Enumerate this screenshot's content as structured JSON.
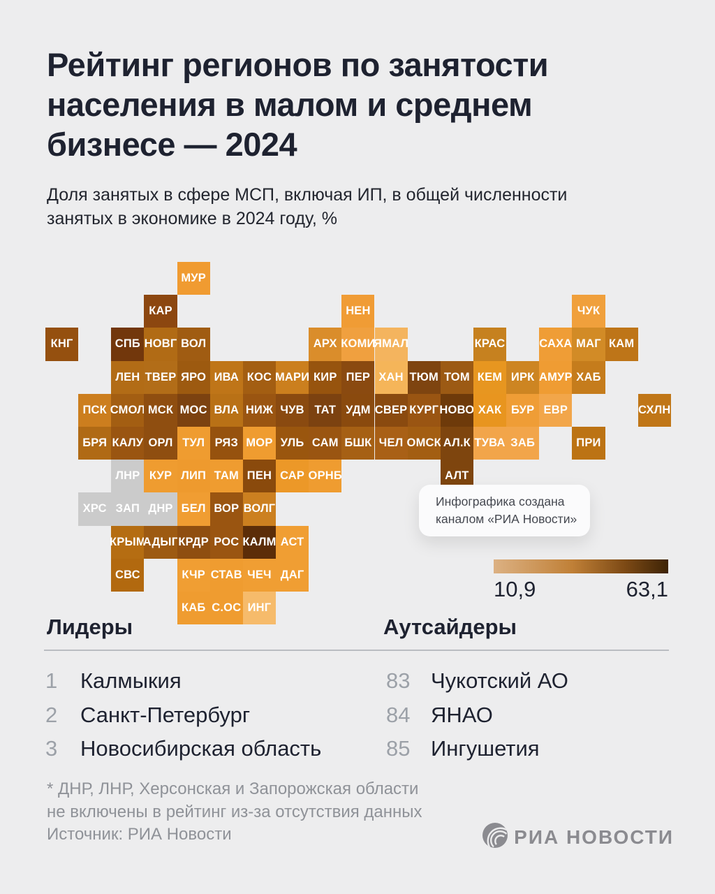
{
  "header": {
    "title_line1": "Рейтинг регионов по занятости",
    "title_line2": "населения в малом и среднем",
    "title_line3": "бизнесе — 2024",
    "subtitle_line1": "Доля занятых в сфере МСП, включая ИП, в общей численности",
    "subtitle_line2": "занятых в экономике в 2024 году, %"
  },
  "info_card": {
    "line1": "Инфографика создана",
    "line2": "каналом «РИА Новости»"
  },
  "legend": {
    "min_label": "10,9",
    "max_label": "63,1"
  },
  "leaders": {
    "heading": "Лидеры",
    "items": [
      {
        "rank": "1",
        "name": "Калмыкия"
      },
      {
        "rank": "2",
        "name": "Санкт-Петербург"
      },
      {
        "rank": "3",
        "name": "Новосибирская область"
      }
    ]
  },
  "outsiders": {
    "heading": "Аутсайдеры",
    "items": [
      {
        "rank": "83",
        "name": "Чукотский АО"
      },
      {
        "rank": "84",
        "name": "ЯНАО"
      },
      {
        "rank": "85",
        "name": "Ингушетия"
      }
    ]
  },
  "footnote_line1": "* ДНР, ЛНР, Херсонская и Запорожская области",
  "footnote_line2": "не включены в рейтинг из-за отсутствия данных",
  "source": "Источник: РИА Новости",
  "logo": {
    "text": "РИА НОВОСТИ"
  },
  "chart_data": {
    "type": "heatmap",
    "title": "Рейтинг регионов по занятости населения в малом и среднем бизнесе — 2024",
    "value_label": "Доля занятых в сфере МСП, включая ИП, в общей численности занятых в экономике в 2024 году, %",
    "scale": {
      "min": 10.9,
      "max": 63.1,
      "gradient": [
        "#DCB183",
        "#C08037",
        "#7D4A15",
        "#3D2306"
      ]
    },
    "excluded_color": "#CBCBCB",
    "tiles": [
      {
        "code": "МУР",
        "row": 0,
        "col": 4,
        "color": "#F09B31"
      },
      {
        "code": "КАР",
        "row": 1,
        "col": 3,
        "color": "#8C4710"
      },
      {
        "code": "НЕН",
        "row": 1,
        "col": 9,
        "color": "#F09C35"
      },
      {
        "code": "ЧУК",
        "row": 1,
        "col": 16,
        "color": "#F0A03C"
      },
      {
        "code": "КНГ",
        "row": 2,
        "col": 0,
        "color": "#95500F"
      },
      {
        "code": "СПБ",
        "row": 2,
        "col": 2,
        "color": "#72370C"
      },
      {
        "code": "НОВГ",
        "row": 2,
        "col": 3,
        "color": "#B16B15"
      },
      {
        "code": "ВОЛ",
        "row": 2,
        "col": 4,
        "color": "#A05C12"
      },
      {
        "code": "АРХ",
        "row": 2,
        "col": 8,
        "color": "#DA8D2B"
      },
      {
        "code": "КОМИ",
        "row": 2,
        "col": 9,
        "color": "#F0A03F"
      },
      {
        "code": "ЯМАЛ",
        "row": 2,
        "col": 10,
        "color": "#F4B45E"
      },
      {
        "code": "КРАС",
        "row": 2,
        "col": 13,
        "color": "#C6811F"
      },
      {
        "code": "САХА",
        "row": 2,
        "col": 15,
        "color": "#EF9D36"
      },
      {
        "code": "МАГ",
        "row": 2,
        "col": 16,
        "color": "#D28B26"
      },
      {
        "code": "КАМ",
        "row": 2,
        "col": 17,
        "color": "#BE7518"
      },
      {
        "code": "ЛЕН",
        "row": 3,
        "col": 2,
        "color": "#B26C16"
      },
      {
        "code": "ТВЕР",
        "row": 3,
        "col": 3,
        "color": "#B26D18"
      },
      {
        "code": "ЯРО",
        "row": 3,
        "col": 4,
        "color": "#9D5A10"
      },
      {
        "code": "ИВА",
        "row": 3,
        "col": 5,
        "color": "#BF7518"
      },
      {
        "code": "КОС",
        "row": 3,
        "col": 6,
        "color": "#A35E12"
      },
      {
        "code": "МАРИ",
        "row": 3,
        "col": 7,
        "color": "#CB7F1E"
      },
      {
        "code": "КИР",
        "row": 3,
        "col": 8,
        "color": "#97540E"
      },
      {
        "code": "ПЕР",
        "row": 3,
        "col": 9,
        "color": "#8A4A10"
      },
      {
        "code": "ХАН",
        "row": 3,
        "col": 10,
        "color": "#F5B559"
      },
      {
        "code": "ТЮМ",
        "row": 3,
        "col": 11,
        "color": "#7E4410"
      },
      {
        "code": "ТОМ",
        "row": 3,
        "col": 12,
        "color": "#9C5A14"
      },
      {
        "code": "КЕМ",
        "row": 3,
        "col": 13,
        "color": "#E79620"
      },
      {
        "code": "ИРК",
        "row": 3,
        "col": 14,
        "color": "#CD8522"
      },
      {
        "code": "АМУР",
        "row": 3,
        "col": 15,
        "color": "#EF9C33"
      },
      {
        "code": "ХАБ",
        "row": 3,
        "col": 16,
        "color": "#C57C1C"
      },
      {
        "code": "ПСК",
        "row": 4,
        "col": 1,
        "color": "#CC7E1E"
      },
      {
        "code": "СМОЛ",
        "row": 4,
        "col": 2,
        "color": "#A35E12"
      },
      {
        "code": "МСК",
        "row": 4,
        "col": 3,
        "color": "#8F4E10"
      },
      {
        "code": "МОС",
        "row": 4,
        "col": 4,
        "color": "#7C4210"
      },
      {
        "code": "ВЛА",
        "row": 4,
        "col": 5,
        "color": "#B97116"
      },
      {
        "code": "НИЖ",
        "row": 4,
        "col": 6,
        "color": "#9A5511"
      },
      {
        "code": "ЧУВ",
        "row": 4,
        "col": 7,
        "color": "#8A4A10"
      },
      {
        "code": "ТАТ",
        "row": 4,
        "col": 8,
        "color": "#7C4210"
      },
      {
        "code": "УДМ",
        "row": 4,
        "col": 9,
        "color": "#8A4A0E"
      },
      {
        "code": "СВЕР",
        "row": 4,
        "col": 10,
        "color": "#8A4A0F"
      },
      {
        "code": "КУРГ",
        "row": 4,
        "col": 11,
        "color": "#9A5512"
      },
      {
        "code": "НОВО",
        "row": 4,
        "col": 12,
        "color": "#6E3A0A"
      },
      {
        "code": "ХАК",
        "row": 4,
        "col": 13,
        "color": "#E8951F"
      },
      {
        "code": "БУР",
        "row": 4,
        "col": 14,
        "color": "#EF9D36"
      },
      {
        "code": "ЕВР",
        "row": 4,
        "col": 15,
        "color": "#F2A64A"
      },
      {
        "code": "СХЛН",
        "row": 4,
        "col": 18,
        "color": "#C07617"
      },
      {
        "code": "БРЯ",
        "row": 5,
        "col": 1,
        "color": "#B06A15"
      },
      {
        "code": "КАЛУ",
        "row": 5,
        "col": 2,
        "color": "#9A5511"
      },
      {
        "code": "ОРЛ",
        "row": 5,
        "col": 3,
        "color": "#8F4E10"
      },
      {
        "code": "ТУЛ",
        "row": 5,
        "col": 4,
        "color": "#EF9C30"
      },
      {
        "code": "РЯЗ",
        "row": 5,
        "col": 5,
        "color": "#96520E"
      },
      {
        "code": "МОР",
        "row": 5,
        "col": 6,
        "color": "#EF9C30"
      },
      {
        "code": "УЛЬ",
        "row": 5,
        "col": 7,
        "color": "#9A560E"
      },
      {
        "code": "САМ",
        "row": 5,
        "col": 8,
        "color": "#9A5511"
      },
      {
        "code": "БШК",
        "row": 5,
        "col": 9,
        "color": "#A66014"
      },
      {
        "code": "ЧЕЛ",
        "row": 5,
        "col": 10,
        "color": "#A96016"
      },
      {
        "code": "ОМСК",
        "row": 5,
        "col": 11,
        "color": "#A35E12"
      },
      {
        "code": "АЛ.К",
        "row": 5,
        "col": 12,
        "color": "#7E450E"
      },
      {
        "code": "ТУВА",
        "row": 5,
        "col": 13,
        "color": "#F2A54A"
      },
      {
        "code": "ЗАБ",
        "row": 5,
        "col": 14,
        "color": "#F2A54A"
      },
      {
        "code": "ПРИ",
        "row": 5,
        "col": 16,
        "color": "#BC7314"
      },
      {
        "code": "ЛНР",
        "row": 6,
        "col": 2,
        "color": "#CBCBCB",
        "excluded": true
      },
      {
        "code": "КУР",
        "row": 6,
        "col": 3,
        "color": "#EF9C30"
      },
      {
        "code": "ЛИП",
        "row": 6,
        "col": 4,
        "color": "#EE9A2E"
      },
      {
        "code": "ТАМ",
        "row": 6,
        "col": 5,
        "color": "#EF9C30"
      },
      {
        "code": "ПЕН",
        "row": 6,
        "col": 6,
        "color": "#8A4A0C"
      },
      {
        "code": "САР",
        "row": 6,
        "col": 7,
        "color": "#EC9828"
      },
      {
        "code": "ОРНБ",
        "row": 6,
        "col": 8,
        "color": "#EF9C30"
      },
      {
        "code": "АЛТ",
        "row": 6,
        "col": 12,
        "color": "#7E450E"
      },
      {
        "code": "ХРС",
        "row": 7,
        "col": 1,
        "color": "#CBCBCB",
        "excluded": true
      },
      {
        "code": "ЗАП",
        "row": 7,
        "col": 2,
        "color": "#CBCBCB",
        "excluded": true
      },
      {
        "code": "ДНР",
        "row": 7,
        "col": 3,
        "color": "#CBCBCB",
        "excluded": true
      },
      {
        "code": "БЕЛ",
        "row": 7,
        "col": 4,
        "color": "#F09D32"
      },
      {
        "code": "ВОР",
        "row": 7,
        "col": 5,
        "color": "#9A5511"
      },
      {
        "code": "ВОЛГ",
        "row": 7,
        "col": 6,
        "color": "#CC8020"
      },
      {
        "code": "КРЫМ",
        "row": 8,
        "col": 2,
        "color": "#B56D12"
      },
      {
        "code": "АДЫГ",
        "row": 8,
        "col": 3,
        "color": "#9D5A12"
      },
      {
        "code": "КРДР",
        "row": 8,
        "col": 4,
        "color": "#8F4E10"
      },
      {
        "code": "РОС",
        "row": 8,
        "col": 5,
        "color": "#9A5511"
      },
      {
        "code": "КАЛМ",
        "row": 8,
        "col": 6,
        "color": "#5C2D08"
      },
      {
        "code": "АСТ",
        "row": 8,
        "col": 7,
        "color": "#F09E33"
      },
      {
        "code": "СВС",
        "row": 9,
        "col": 2,
        "color": "#B2690F"
      },
      {
        "code": "КЧР",
        "row": 9,
        "col": 4,
        "color": "#F09E33"
      },
      {
        "code": "СТАВ",
        "row": 9,
        "col": 5,
        "color": "#EF9C30"
      },
      {
        "code": "ЧЕЧ",
        "row": 9,
        "col": 6,
        "color": "#F09E33"
      },
      {
        "code": "ДАГ",
        "row": 9,
        "col": 7,
        "color": "#F09E33"
      },
      {
        "code": "КАБ",
        "row": 10,
        "col": 4,
        "color": "#EF9C30"
      },
      {
        "code": "С.ОС",
        "row": 10,
        "col": 5,
        "color": "#EF9C30"
      },
      {
        "code": "ИНГ",
        "row": 10,
        "col": 6,
        "color": "#F6BB6B"
      }
    ]
  }
}
